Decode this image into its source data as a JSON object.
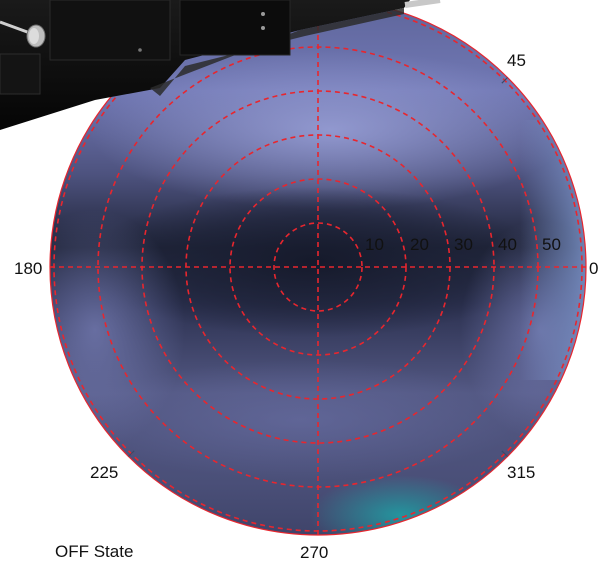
{
  "state_label": "OFF State",
  "radial_labels": [
    "10",
    "20",
    "30",
    "40",
    "50"
  ],
  "azimuth_labels": {
    "deg0": "0",
    "deg45": "45",
    "deg180": "180",
    "deg225": "225",
    "deg270": "270",
    "deg315": "315"
  },
  "colors": {
    "grid": "#e8262e",
    "plot_dark": "#1d2236",
    "plot_mid": "#4a4f78",
    "plot_light": "#8a90c4",
    "cyan_patch": "#1e8a96",
    "instrument": "#0d0d0d",
    "instrument_edge": "#2a2a2a",
    "text": "#111111"
  }
}
